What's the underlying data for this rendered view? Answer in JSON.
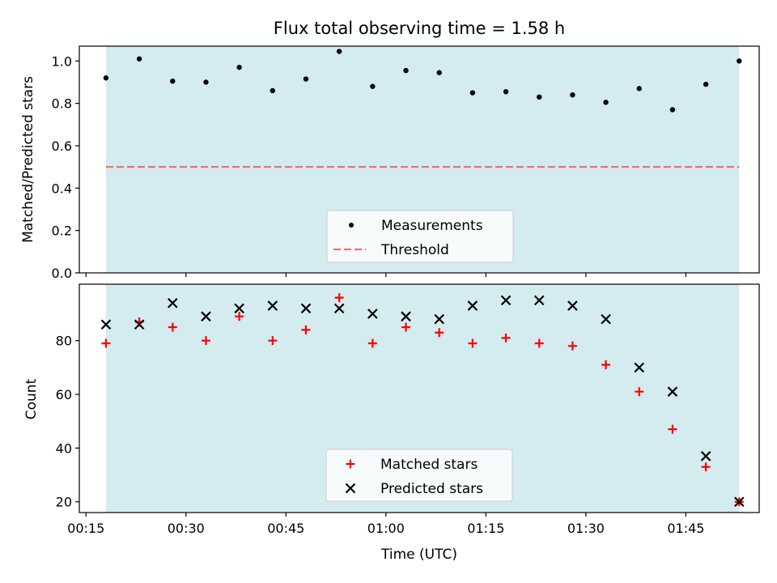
{
  "chart_data": [
    {
      "type": "scatter",
      "title": "Flux total observing time = 1.58 h",
      "ylabel": "Matched/Predicted stars",
      "xlabel": "",
      "ylim": [
        0,
        1.07
      ],
      "yticks": [
        0.0,
        0.2,
        0.4,
        0.6,
        0.8,
        1.0
      ],
      "ytick_labels": [
        "0.0",
        "0.2",
        "0.4",
        "0.6",
        "0.8",
        "1.0"
      ],
      "xlim": [
        "00:14",
        "01:56"
      ],
      "observing_span": [
        "00:18",
        "01:53"
      ],
      "observing_span_color": "#d4ebf0",
      "grid": false,
      "legend": "lower-center",
      "series": [
        {
          "name": "Measurements",
          "marker": "dot",
          "color": "#000000",
          "points": [
            {
              "x": "00:18",
              "y": 0.92
            },
            {
              "x": "00:23",
              "y": 1.01
            },
            {
              "x": "00:28",
              "y": 0.905
            },
            {
              "x": "00:33",
              "y": 0.9
            },
            {
              "x": "00:38",
              "y": 0.97
            },
            {
              "x": "00:43",
              "y": 0.86
            },
            {
              "x": "00:48",
              "y": 0.915
            },
            {
              "x": "00:53",
              "y": 1.045
            },
            {
              "x": "00:58",
              "y": 0.88
            },
            {
              "x": "01:03",
              "y": 0.955
            },
            {
              "x": "01:08",
              "y": 0.945
            },
            {
              "x": "01:13",
              "y": 0.85
            },
            {
              "x": "01:18",
              "y": 0.855
            },
            {
              "x": "01:23",
              "y": 0.83
            },
            {
              "x": "01:28",
              "y": 0.84
            },
            {
              "x": "01:33",
              "y": 0.805
            },
            {
              "x": "01:38",
              "y": 0.87
            },
            {
              "x": "01:43",
              "y": 0.77
            },
            {
              "x": "01:48",
              "y": 0.89
            },
            {
              "x": "01:53",
              "y": 1.0
            }
          ]
        },
        {
          "name": "Threshold",
          "marker": "dashed-line",
          "color": "#f07070",
          "points": [
            {
              "x": "00:18",
              "y": 0.5
            },
            {
              "x": "01:53",
              "y": 0.5
            }
          ]
        }
      ]
    },
    {
      "type": "scatter",
      "title": "",
      "ylabel": "Count",
      "xlabel": "Time (UTC)",
      "ylim": [
        16,
        101
      ],
      "yticks": [
        20,
        40,
        60,
        80
      ],
      "ytick_labels": [
        "20",
        "40",
        "60",
        "80"
      ],
      "xlim": [
        "00:14",
        "01:56"
      ],
      "xticks": [
        "00:15",
        "00:30",
        "00:45",
        "01:00",
        "01:15",
        "01:30",
        "01:45"
      ],
      "xtick_labels": [
        "00:15",
        "00:30",
        "00:45",
        "01:00",
        "01:15",
        "01:30",
        "01:45"
      ],
      "observing_span": [
        "00:18",
        "01:53"
      ],
      "observing_span_color": "#d4ebf0",
      "grid": false,
      "legend": "lower-center",
      "series": [
        {
          "name": "Matched stars",
          "marker": "plus",
          "color": "#ff0000",
          "points": [
            {
              "x": "00:18",
              "y": 79
            },
            {
              "x": "00:23",
              "y": 87
            },
            {
              "x": "00:28",
              "y": 85
            },
            {
              "x": "00:33",
              "y": 80
            },
            {
              "x": "00:38",
              "y": 89
            },
            {
              "x": "00:43",
              "y": 80
            },
            {
              "x": "00:48",
              "y": 84
            },
            {
              "x": "00:53",
              "y": 96
            },
            {
              "x": "00:58",
              "y": 79
            },
            {
              "x": "01:03",
              "y": 85
            },
            {
              "x": "01:08",
              "y": 83
            },
            {
              "x": "01:13",
              "y": 79
            },
            {
              "x": "01:18",
              "y": 81
            },
            {
              "x": "01:23",
              "y": 79
            },
            {
              "x": "01:28",
              "y": 78
            },
            {
              "x": "01:33",
              "y": 71
            },
            {
              "x": "01:38",
              "y": 61
            },
            {
              "x": "01:43",
              "y": 47
            },
            {
              "x": "01:48",
              "y": 33
            },
            {
              "x": "01:53",
              "y": 20
            }
          ]
        },
        {
          "name": "Predicted stars",
          "marker": "x",
          "color": "#000000",
          "points": [
            {
              "x": "00:18",
              "y": 86
            },
            {
              "x": "00:23",
              "y": 86
            },
            {
              "x": "00:28",
              "y": 94
            },
            {
              "x": "00:33",
              "y": 89
            },
            {
              "x": "00:38",
              "y": 92
            },
            {
              "x": "00:43",
              "y": 93
            },
            {
              "x": "00:48",
              "y": 92
            },
            {
              "x": "00:53",
              "y": 92
            },
            {
              "x": "00:58",
              "y": 90
            },
            {
              "x": "01:03",
              "y": 89
            },
            {
              "x": "01:08",
              "y": 88
            },
            {
              "x": "01:13",
              "y": 93
            },
            {
              "x": "01:18",
              "y": 95
            },
            {
              "x": "01:23",
              "y": 95
            },
            {
              "x": "01:28",
              "y": 93
            },
            {
              "x": "01:33",
              "y": 88
            },
            {
              "x": "01:38",
              "y": 70
            },
            {
              "x": "01:43",
              "y": 61
            },
            {
              "x": "01:48",
              "y": 37
            },
            {
              "x": "01:53",
              "y": 20
            }
          ]
        }
      ]
    }
  ]
}
